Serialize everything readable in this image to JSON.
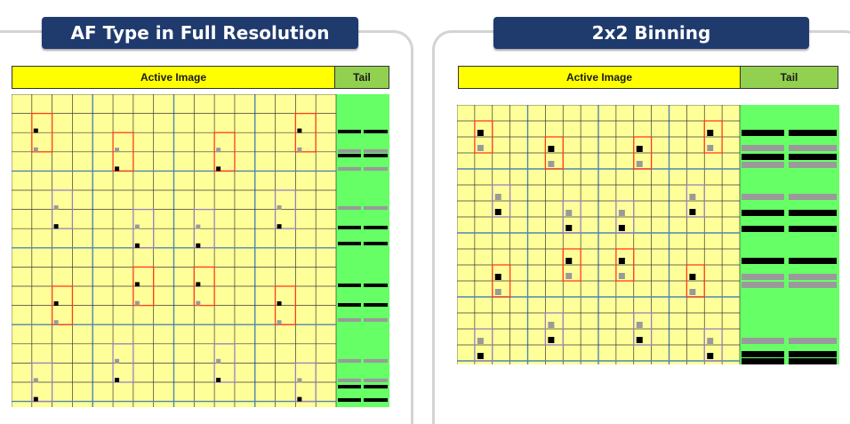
{
  "colors": {
    "title_bg": "#1f3b6d",
    "active_bg": "#ffff00",
    "tail_bg": "#92d050",
    "cell_bg": "#ffff99",
    "tail_area_bg": "#66ff66",
    "pd_box": "#ff3b1f",
    "pd_box_alt": "#9b7fc0",
    "block_line": "#4f86b0",
    "pixel_black": "#000000",
    "pixel_gray": "#9a9a9a"
  },
  "panels": [
    {
      "id": "full",
      "title": "AF Type in Full Resolution",
      "active_label": "Active Image",
      "tail_label": "Tail"
    },
    {
      "id": "binning",
      "title": "2x2 Binning",
      "active_label": "Active Image",
      "tail_label": "Tail"
    }
  ]
}
